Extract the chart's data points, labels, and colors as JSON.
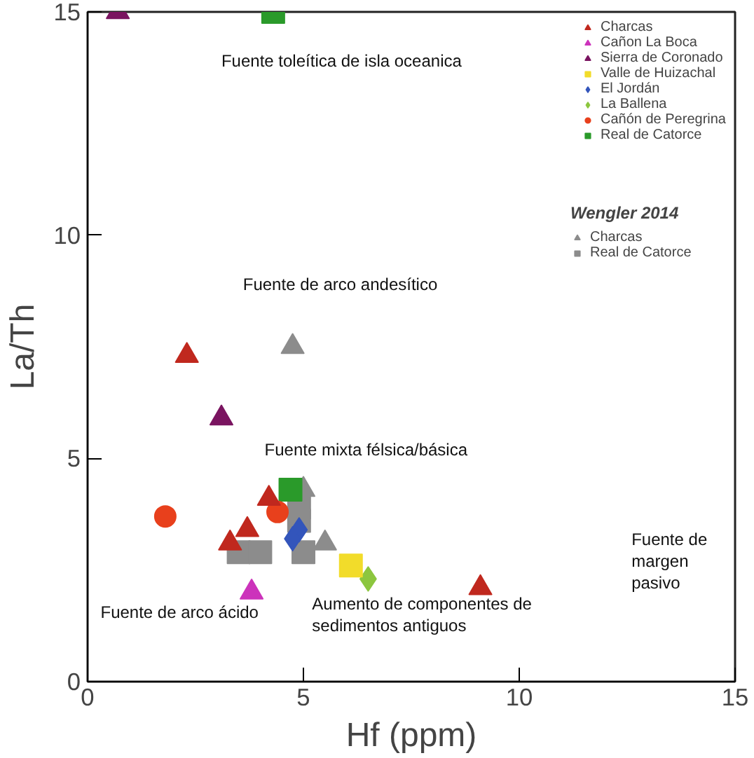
{
  "chart_data": {
    "type": "scatter",
    "xlabel": "Hf (ppm)",
    "ylabel": "La/Th",
    "xlim": [
      0,
      15
    ],
    "ylim": [
      0,
      15
    ],
    "xticks": [
      0,
      5,
      10,
      15
    ],
    "yticks": [
      0,
      5,
      10,
      15
    ],
    "grid": false,
    "legend": "top right",
    "legend_title": "Wengler 2014",
    "series": [
      {
        "name": "Charcas",
        "color": "#c0281e",
        "marker": "triangle",
        "x": [
          2.3,
          3.3,
          3.7,
          4.2,
          9.1
        ],
        "values": [
          7.3,
          3.1,
          3.4,
          4.1,
          2.1
        ]
      },
      {
        "name": "Cañon La Boca",
        "color": "#cc33bb",
        "marker": "triangle",
        "x": [
          3.8
        ],
        "values": [
          2.0
        ]
      },
      {
        "name": "Sierra de Coronado",
        "color": "#7a1460",
        "marker": "triangle",
        "x": [
          0.7,
          3.1
        ],
        "values": [
          15,
          5.9
        ]
      },
      {
        "name": "Valle de Huizachal",
        "color": "#f2dc2a",
        "marker": "square",
        "x": [
          6.1
        ],
        "values": [
          2.6
        ]
      },
      {
        "name": "El Jordán",
        "color": "#3355bb",
        "marker": "diamond",
        "x": [
          4.9,
          4.75
        ],
        "values": [
          3.4,
          3.2
        ]
      },
      {
        "name": "La Ballena",
        "color": "#8cc63f",
        "marker": "diamond",
        "x": [
          6.5
        ],
        "values": [
          2.3
        ]
      },
      {
        "name": "Cañón de Peregrina",
        "color": "#e8401c",
        "marker": "circle",
        "x": [
          1.8,
          4.4
        ],
        "values": [
          3.7,
          3.8
        ]
      },
      {
        "name": "Real de Catorce",
        "color": "#2a9a2a",
        "marker": "square",
        "x": [
          4.3,
          4.7
        ],
        "values": [
          15,
          4.3
        ]
      },
      {
        "name": "Charcas",
        "color": "#8c8c8c",
        "marker": "triangle",
        "x": [
          4.75,
          5.0,
          5.5
        ],
        "values": [
          7.5,
          4.3,
          3.1
        ]
      },
      {
        "name": "Real de Catorce",
        "color": "#8c8c8c",
        "marker": "square",
        "x": [
          3.5,
          4.0,
          4.9,
          5.0,
          4.9
        ],
        "values": [
          2.9,
          2.9,
          3.9,
          2.9,
          3.6
        ]
      }
    ],
    "annotations": [
      "Fuente toleítica de isla oceanica",
      "Fuente de arco andesítico",
      "Fuente mixta félsica/básica",
      "Fuente de arco ácido",
      "Aumento de componentes de\nsedimentos antiguos",
      "Fuente de\nmargen\npasivo"
    ]
  }
}
